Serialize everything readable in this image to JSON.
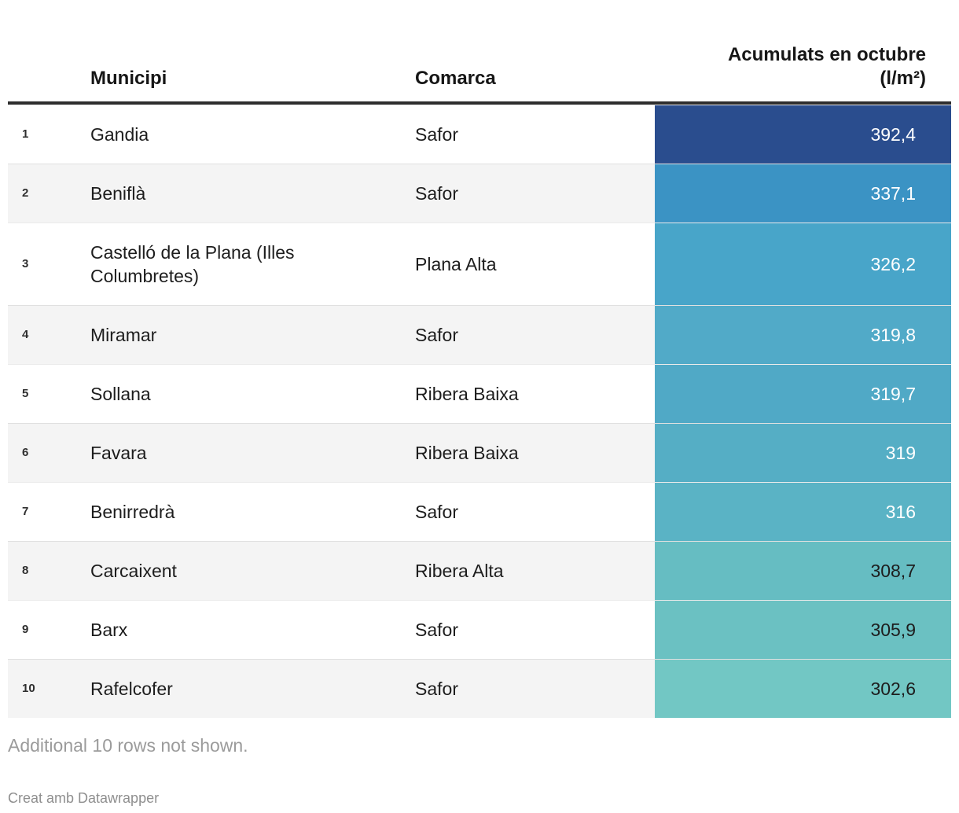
{
  "table": {
    "headers": {
      "municipi": "Municipi",
      "comarca": "Comarca",
      "value_line1": "Acumulats en octubre",
      "value_line2": "(l/m²)"
    },
    "rows": [
      {
        "rank": "1",
        "municipi": "Gandia",
        "comarca": "Safor",
        "value": "392,4",
        "cell_color": "#2a4d8e",
        "text_color": "#ffffff"
      },
      {
        "rank": "2",
        "municipi": "Beniflà",
        "comarca": "Safor",
        "value": "337,1",
        "cell_color": "#3b93c4",
        "text_color": "#ffffff"
      },
      {
        "rank": "3",
        "municipi": "Castelló de la Plana (Illes Columbretes)",
        "comarca": "Plana Alta",
        "value": "326,2",
        "cell_color": "#48a5c9",
        "text_color": "#ffffff"
      },
      {
        "rank": "4",
        "municipi": "Miramar",
        "comarca": "Safor",
        "value": "319,8",
        "cell_color": "#51aac8",
        "text_color": "#ffffff"
      },
      {
        "rank": "5",
        "municipi": "Sollana",
        "comarca": "Ribera Baixa",
        "value": "319,7",
        "cell_color": "#50a9c6",
        "text_color": "#ffffff"
      },
      {
        "rank": "6",
        "municipi": "Favara",
        "comarca": "Ribera Baixa",
        "value": "319",
        "cell_color": "#55aec5",
        "text_color": "#ffffff"
      },
      {
        "rank": "7",
        "municipi": "Benirredrà",
        "comarca": "Safor",
        "value": "316",
        "cell_color": "#5ab3c5",
        "text_color": "#ffffff"
      },
      {
        "rank": "8",
        "municipi": "Carcaixent",
        "comarca": "Ribera Alta",
        "value": "308,7",
        "cell_color": "#66bdc2",
        "text_color": "#1d1d1d"
      },
      {
        "rank": "9",
        "municipi": "Barx",
        "comarca": "Safor",
        "value": "305,9",
        "cell_color": "#6bc1c2",
        "text_color": "#1d1d1d"
      },
      {
        "rank": "10",
        "municipi": "Rafelcofer",
        "comarca": "Safor",
        "value": "302,6",
        "cell_color": "#72c7c4",
        "text_color": "#1d1d1d"
      }
    ]
  },
  "footer": {
    "note": "Additional 10 rows not shown.",
    "attribution": "Creat amb Datawrapper"
  },
  "chart_data": {
    "type": "table",
    "columns": [
      "",
      "Municipi",
      "Comarca",
      "Acumulats en octubre (l/m²)"
    ],
    "rows": [
      [
        1,
        "Gandia",
        "Safor",
        392.4
      ],
      [
        2,
        "Beniflà",
        "Safor",
        337.1
      ],
      [
        3,
        "Castelló de la Plana (Illes Columbretes)",
        "Plana Alta",
        326.2
      ],
      [
        4,
        "Miramar",
        "Safor",
        319.8
      ],
      [
        5,
        "Sollana",
        "Ribera Baixa",
        319.7
      ],
      [
        6,
        "Favara",
        "Ribera Baixa",
        319.0
      ],
      [
        7,
        "Benirredrà",
        "Safor",
        316.0
      ],
      [
        8,
        "Carcaixent",
        "Ribera Alta",
        308.7
      ],
      [
        9,
        "Barx",
        "Safor",
        305.9
      ],
      [
        10,
        "Rafelcofer",
        "Safor",
        302.6
      ]
    ],
    "value_column_style": "heatmap",
    "heatmap_scale": [
      "#72c7c4",
      "#2a4d8e"
    ],
    "note": "Additional 10 rows not shown.",
    "attribution": "Creat amb Datawrapper"
  }
}
